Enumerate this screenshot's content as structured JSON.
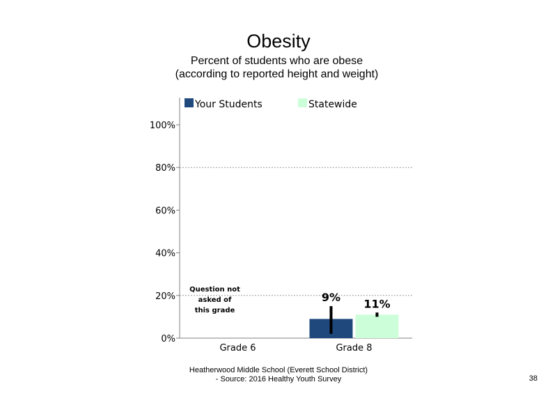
{
  "slide": {
    "footer_line1": "Heatherwood Middle School (Everett School District)",
    "footer_line2": "- Source: 2016 Healthy Youth Survey",
    "page_number": "38"
  },
  "chart_data": {
    "type": "bar",
    "title": "Obesity",
    "subtitle": "Percent of students who are obese (according to reported height and weight)",
    "categories": [
      "Grade 6",
      "Grade 8"
    ],
    "series": [
      {
        "name": "Your Students",
        "color": "#1f497d",
        "values": [
          null,
          9
        ],
        "labels": [
          "",
          "9%"
        ],
        "error": [
          null,
          [
            2,
            15
          ]
        ]
      },
      {
        "name": "Statewide",
        "color": "#ccffd9",
        "values": [
          null,
          11
        ],
        "labels": [
          "",
          "11%"
        ],
        "error": [
          null,
          [
            10,
            12
          ]
        ]
      }
    ],
    "ylim": [
      0,
      100
    ],
    "yticks": [
      0,
      20,
      40,
      60,
      80,
      100
    ],
    "ytick_labels": [
      "0%",
      "20%",
      "40%",
      "60%",
      "80%",
      "100%"
    ],
    "gridlines": [
      20,
      80
    ],
    "legend_position": "top",
    "annotations": [
      {
        "category": "Grade 6",
        "lines": [
          "Question not",
          "asked of",
          "this grade"
        ]
      }
    ]
  }
}
